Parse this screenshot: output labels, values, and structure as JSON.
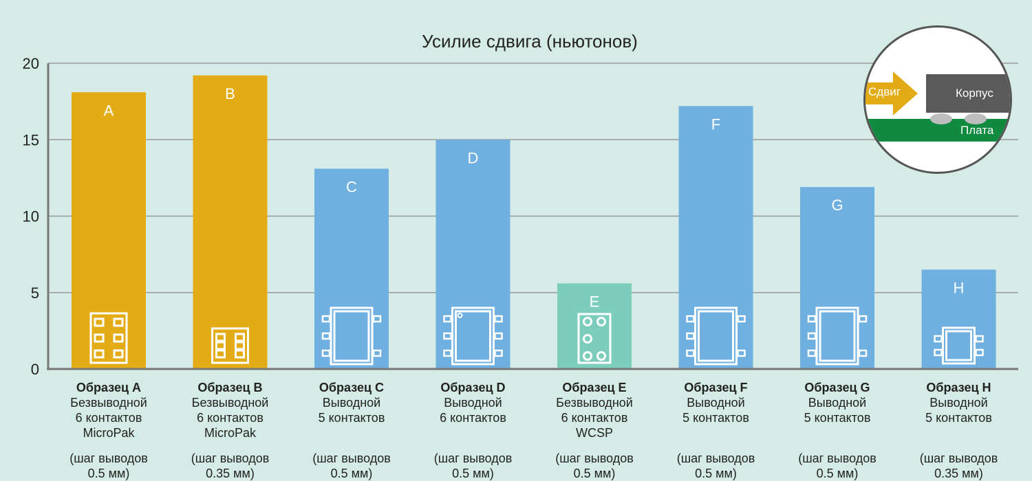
{
  "chart_data": {
    "type": "bar",
    "title": "Усилие сдвига (ньютонов)",
    "ylim": [
      0,
      20
    ],
    "yticks": [
      0,
      5,
      10,
      15,
      20
    ],
    "grid": true,
    "categories": [
      "A",
      "B",
      "C",
      "D",
      "E",
      "F",
      "G",
      "H"
    ],
    "values": [
      18.1,
      19.2,
      13.1,
      15.0,
      5.6,
      17.2,
      11.9,
      6.5
    ],
    "colors": [
      "#e3ac17",
      "#e3ac17",
      "#6fb0e0",
      "#6fb0e0",
      "#7dcdbc",
      "#6fb0e0",
      "#6fb0e0",
      "#6fb0e0"
    ],
    "package_icons": [
      "leadless-6",
      "leadless-6-small",
      "leaded-5",
      "leaded-6",
      "wcsp-6",
      "leaded-5",
      "leaded-5",
      "leaded-5-small"
    ],
    "samples": [
      {
        "name": "Образец A",
        "lines": [
          "Безвыводной",
          "6 контактов",
          "MicroPak"
        ],
        "pitch": [
          "(шаг выводов",
          "0.5 мм)"
        ]
      },
      {
        "name": "Образец B",
        "lines": [
          "Безвыводной",
          "6 контактов",
          "MicroPak"
        ],
        "pitch": [
          "(шаг выводов",
          "0.35 мм)"
        ]
      },
      {
        "name": "Образец C",
        "lines": [
          "Выводной",
          "5 контактов",
          ""
        ],
        "pitch": [
          "(шаг выводов",
          "0.5 мм)"
        ]
      },
      {
        "name": "Образец D",
        "lines": [
          "Выводной",
          "6 контактов",
          ""
        ],
        "pitch": [
          "(шаг выводов",
          "0.5 мм)"
        ]
      },
      {
        "name": "Образец E",
        "lines": [
          "Безвыводной",
          "6 контактов",
          "WCSP"
        ],
        "pitch": [
          "(шаг выводов",
          "0.5 мм)"
        ]
      },
      {
        "name": "Образец F",
        "lines": [
          "Выводной",
          "5 контактов",
          ""
        ],
        "pitch": [
          "(шаг выводов",
          "0.5 мм)"
        ]
      },
      {
        "name": "Образец G",
        "lines": [
          "Выводной",
          "5 контактов",
          ""
        ],
        "pitch": [
          "(шаг выводов",
          "0.5 мм)"
        ]
      },
      {
        "name": "Образец H",
        "lines": [
          "Выводной",
          "5 контактов",
          ""
        ],
        "pitch": [
          "(шаг выводов",
          "0.35 мм)"
        ]
      }
    ]
  },
  "inset": {
    "shear_label": "Сдвиг",
    "package_label": "Корпус",
    "board_label": "Плата"
  }
}
